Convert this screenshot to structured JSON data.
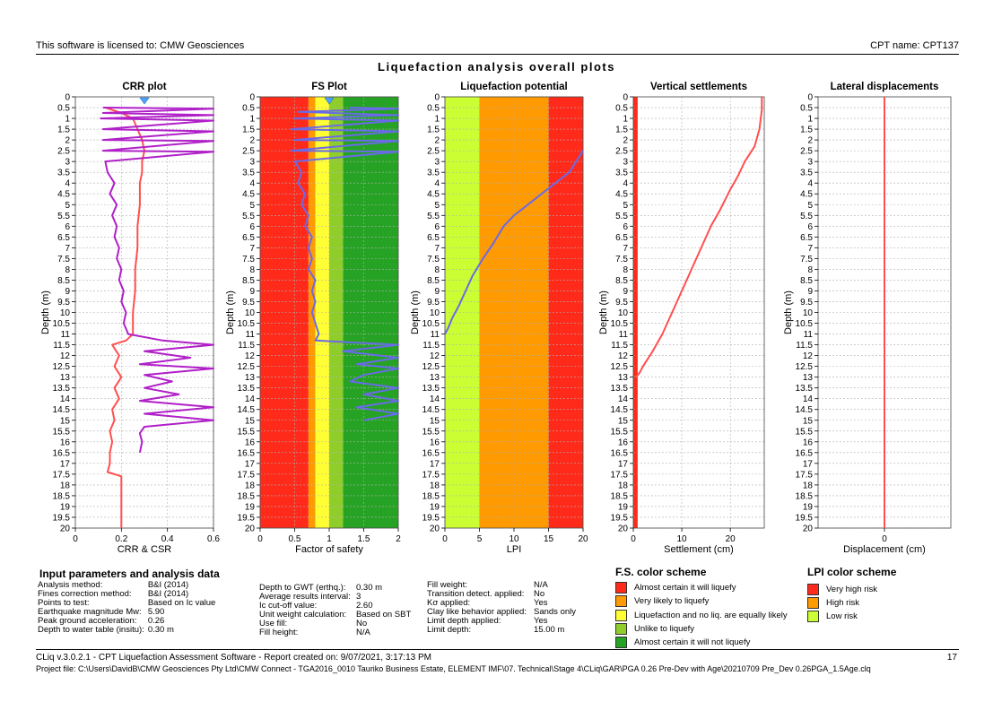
{
  "header": {
    "license": "This software is licensed to: CMW Geosciences",
    "cpt_name": "CPT name: CPT137"
  },
  "page_title": "Liquefaction analysis overall plots",
  "colors": {
    "red": "#ff2a1a",
    "orange": "#ff9a00",
    "yellow": "#ffff33",
    "lightgreen": "#8fce2a",
    "green": "#26a324",
    "lime": "#ccff33",
    "crr": "#ff4f4f",
    "csr": "#b020c8",
    "fs": "#6a6ae8",
    "settle": "#ff4f4f"
  },
  "chart_data": [
    {
      "type": "line",
      "title": "CRR plot",
      "xlabel": "CRR & CSR",
      "ylabel": "Depth (m)",
      "xlim": [
        0,
        0.6
      ],
      "ylim": [
        0,
        20
      ],
      "y_inverted": true,
      "grid": true,
      "x_ticks": [
        "0",
        "0.2",
        "0.4",
        "0.6"
      ],
      "gwt_marker_x": 0.3,
      "series": [
        {
          "name": "CRR",
          "color": "#ff4f4f",
          "points": [
            [
              0.13,
              0.5
            ],
            [
              0.2,
              0.75
            ],
            [
              0.25,
              1
            ],
            [
              0.27,
              1.5
            ],
            [
              0.29,
              2
            ],
            [
              0.3,
              2.5
            ],
            [
              0.29,
              3
            ],
            [
              0.29,
              3.5
            ],
            [
              0.28,
              4
            ],
            [
              0.28,
              5
            ],
            [
              0.27,
              6
            ],
            [
              0.27,
              7
            ],
            [
              0.26,
              8
            ],
            [
              0.26,
              9
            ],
            [
              0.25,
              10
            ],
            [
              0.25,
              11
            ],
            [
              0.22,
              11.3
            ],
            [
              0.16,
              11.5
            ],
            [
              0.19,
              12
            ],
            [
              0.17,
              12.5
            ],
            [
              0.2,
              13
            ],
            [
              0.17,
              13.5
            ],
            [
              0.19,
              14
            ],
            [
              0.16,
              14.5
            ],
            [
              0.17,
              15
            ],
            [
              0.15,
              15.5
            ],
            [
              0.16,
              16
            ],
            [
              0.15,
              16.5
            ],
            [
              0.15,
              17
            ],
            [
              0.14,
              17.4
            ],
            [
              0.2,
              17.6
            ],
            [
              0.2,
              18
            ],
            [
              0.2,
              19
            ],
            [
              0.2,
              20
            ]
          ]
        },
        {
          "name": "CSR",
          "color": "#b020c8",
          "points": [
            [
              0.12,
              0.5
            ],
            [
              0.6,
              0.55
            ],
            [
              0.12,
              0.75
            ],
            [
              0.6,
              0.85
            ],
            [
              0.11,
              1
            ],
            [
              0.6,
              1.1
            ],
            [
              0.12,
              1.5
            ],
            [
              0.6,
              1.6
            ],
            [
              0.12,
              2
            ],
            [
              0.6,
              2.05
            ],
            [
              0.12,
              2.5
            ],
            [
              0.6,
              2.55
            ],
            [
              0.13,
              3
            ],
            [
              0.14,
              3.5
            ],
            [
              0.17,
              4
            ],
            [
              0.15,
              4.5
            ],
            [
              0.18,
              5
            ],
            [
              0.16,
              5.5
            ],
            [
              0.18,
              6
            ],
            [
              0.17,
              6.5
            ],
            [
              0.19,
              7
            ],
            [
              0.18,
              7.5
            ],
            [
              0.2,
              8
            ],
            [
              0.19,
              8.5
            ],
            [
              0.21,
              9
            ],
            [
              0.2,
              9.5
            ],
            [
              0.22,
              10
            ],
            [
              0.21,
              10.5
            ],
            [
              0.23,
              11
            ],
            [
              0.38,
              11.3
            ],
            [
              0.6,
              11.5
            ],
            [
              0.3,
              11.8
            ],
            [
              0.5,
              12.1
            ],
            [
              0.28,
              12.4
            ],
            [
              0.6,
              12.6
            ],
            [
              0.3,
              12.9
            ],
            [
              0.42,
              13.2
            ],
            [
              0.3,
              13.5
            ],
            [
              0.45,
              13.8
            ],
            [
              0.28,
              14.1
            ],
            [
              0.6,
              14.4
            ],
            [
              0.3,
              14.7
            ],
            [
              0.6,
              15
            ],
            [
              0.3,
              15.3
            ],
            [
              0.28,
              15.6
            ],
            [
              0.29,
              16
            ],
            [
              0.28,
              16.5
            ]
          ]
        }
      ]
    },
    {
      "type": "line",
      "title": "FS Plot",
      "xlabel": "Factor of safety",
      "ylabel": "Depth (m)",
      "xlim": [
        0,
        2
      ],
      "ylim": [
        0,
        20
      ],
      "y_inverted": true,
      "grid": true,
      "x_ticks": [
        "0",
        "0.5",
        "1",
        "1.5",
        "2"
      ],
      "gwt_marker_x": 1.0,
      "bands": [
        {
          "from": 0,
          "to": 0.7,
          "color": "#ff2a1a"
        },
        {
          "from": 0.7,
          "to": 0.8,
          "color": "#ff9a00"
        },
        {
          "from": 0.8,
          "to": 1.0,
          "color": "#ffff33"
        },
        {
          "from": 1.0,
          "to": 1.2,
          "color": "#8fce2a"
        },
        {
          "from": 1.2,
          "to": 2.0,
          "color": "#26a324"
        }
      ],
      "series": [
        {
          "name": "FS",
          "color": "#6a6ae8",
          "points": [
            [
              1.3,
              0.5
            ],
            [
              2,
              0.55
            ],
            [
              0.55,
              0.7
            ],
            [
              2,
              0.85
            ],
            [
              0.5,
              1
            ],
            [
              2,
              1.1
            ],
            [
              0.45,
              1.5
            ],
            [
              2,
              1.6
            ],
            [
              0.5,
              2
            ],
            [
              2,
              2.05
            ],
            [
              0.45,
              2.5
            ],
            [
              2,
              2.55
            ],
            [
              0.5,
              3
            ],
            [
              0.6,
              3.5
            ],
            [
              0.55,
              4
            ],
            [
              0.65,
              4.5
            ],
            [
              0.6,
              5
            ],
            [
              0.7,
              5.5
            ],
            [
              0.65,
              6
            ],
            [
              0.75,
              6.5
            ],
            [
              0.7,
              7
            ],
            [
              0.75,
              7.5
            ],
            [
              0.7,
              8
            ],
            [
              0.8,
              8.5
            ],
            [
              0.75,
              9
            ],
            [
              0.8,
              9.5
            ],
            [
              0.75,
              10
            ],
            [
              0.8,
              10.5
            ],
            [
              0.85,
              11
            ],
            [
              0.8,
              11.3
            ],
            [
              2,
              11.5
            ],
            [
              1.2,
              11.8
            ],
            [
              2,
              12.1
            ],
            [
              1.4,
              12.4
            ],
            [
              2,
              12.6
            ],
            [
              1.5,
              12.9
            ],
            [
              1.3,
              13.2
            ],
            [
              2,
              13.5
            ],
            [
              1.5,
              13.8
            ],
            [
              2,
              14.1
            ],
            [
              1.4,
              14.4
            ],
            [
              2,
              14.7
            ],
            [
              1.5,
              15
            ]
          ]
        }
      ]
    },
    {
      "type": "line",
      "title": "Liquefaction potential",
      "xlabel": "LPI",
      "ylabel": "Depth (m)",
      "xlim": [
        0,
        20
      ],
      "ylim": [
        0,
        20
      ],
      "y_inverted": true,
      "grid": true,
      "x_ticks": [
        "0",
        "5",
        "10",
        "15",
        "20"
      ],
      "bands": [
        {
          "from": 0,
          "to": 5,
          "color": "#ccff33"
        },
        {
          "from": 5,
          "to": 15,
          "color": "#ff9a00"
        },
        {
          "from": 15,
          "to": 20,
          "color": "#ff2a1a"
        }
      ],
      "series": [
        {
          "name": "LPI",
          "color": "#6a6ae8",
          "points": [
            [
              20,
              2.5
            ],
            [
              18,
              3.5
            ],
            [
              16,
              4
            ],
            [
              14,
              4.5
            ],
            [
              12,
              5
            ],
            [
              10,
              5.5
            ],
            [
              8.5,
              6
            ],
            [
              7,
              6.8
            ],
            [
              5.5,
              7.5
            ],
            [
              4,
              8.3
            ],
            [
              3,
              9
            ],
            [
              2,
              9.7
            ],
            [
              1,
              10.3
            ],
            [
              0.5,
              10.7
            ],
            [
              0,
              11
            ]
          ]
        }
      ]
    },
    {
      "type": "line",
      "title": "Vertical settlements",
      "xlabel": "Settlement (cm)",
      "ylabel": "Depth (m)",
      "xlim": [
        0,
        27
      ],
      "ylim": [
        0,
        20
      ],
      "y_inverted": true,
      "grid": true,
      "x_ticks": [
        "0",
        "10",
        "20"
      ],
      "tick_values": [
        0,
        10,
        20
      ],
      "left_band": {
        "to": 0.9,
        "color": "#ff2a1a"
      },
      "series": [
        {
          "name": "Settlement",
          "color": "#ff4f4f",
          "points": [
            [
              26.5,
              0
            ],
            [
              26.5,
              0.6
            ],
            [
              26,
              1.5
            ],
            [
              25,
              2.3
            ],
            [
              23,
              3
            ],
            [
              21.5,
              3.7
            ],
            [
              20,
              4.3
            ],
            [
              18,
              5.2
            ],
            [
              16,
              6
            ],
            [
              14,
              7
            ],
            [
              12,
              8
            ],
            [
              10,
              9
            ],
            [
              8,
              10
            ],
            [
              6,
              11
            ],
            [
              4,
              11.8
            ],
            [
              2,
              12.5
            ],
            [
              1.3,
              12.8
            ],
            [
              0.5,
              13
            ]
          ]
        }
      ]
    },
    {
      "type": "line",
      "title": "Lateral displacements",
      "xlabel": "Displacement (cm)",
      "ylabel": "Depth (m)",
      "xlim": [
        -1,
        1
      ],
      "ylim": [
        0,
        20
      ],
      "y_inverted": true,
      "grid": true,
      "x_ticks": [
        "0"
      ],
      "tick_values": [
        0
      ],
      "series": [
        {
          "name": "Displacement",
          "color": "#ff4f4f",
          "points": [
            [
              0,
              0
            ],
            [
              0,
              20
            ]
          ]
        }
      ]
    }
  ],
  "y_tick_labels": [
    "0",
    "0.5",
    "1",
    "1.5",
    "2",
    "2.5",
    "3",
    "3.5",
    "4",
    "4.5",
    "5",
    "5.5",
    "6",
    "6.5",
    "7",
    "7.5",
    "8",
    "8.5",
    "9",
    "9.5",
    "10",
    "10.5",
    "11",
    "11.5",
    "12",
    "12.5",
    "13",
    "13.5",
    "14",
    "14.5",
    "15",
    "15.5",
    "16",
    "16.5",
    "17",
    "17.5",
    "18",
    "18.5",
    "19",
    "19.5",
    "20"
  ],
  "input_params": {
    "title": "Input parameters and analysis data",
    "col1": [
      [
        "Analysis method:",
        "B&I (2014)"
      ],
      [
        "Fines correction method:",
        "B&I (2014)"
      ],
      [
        "Points to test:",
        "Based on Ic value"
      ],
      [
        "Earthquake magnitude Mw:",
        "5.90"
      ],
      [
        "Peak ground acceleration:",
        "0.26"
      ],
      [
        "Depth to water table (insitu):",
        "0.30 m"
      ]
    ],
    "col2": [
      [
        "Depth to GWT (erthq.):",
        "0.30 m"
      ],
      [
        "Average results interval:",
        "3"
      ],
      [
        "Ic cut-off value:",
        "2.60"
      ],
      [
        "Unit weight calculation:",
        "Based on SBT"
      ],
      [
        "Use fill:",
        "No"
      ],
      [
        "Fill height:",
        "N/A"
      ]
    ],
    "col3": [
      [
        "Fill weight:",
        "N/A"
      ],
      [
        "Transition detect. applied:",
        "No"
      ],
      [
        "Kσ applied:",
        "Yes"
      ],
      [
        "Clay like behavior applied:",
        "Sands only"
      ],
      [
        "Limit depth applied:",
        "Yes"
      ],
      [
        "Limit depth:",
        "15.00 m"
      ]
    ]
  },
  "fs_scheme": {
    "title": "F.S. color scheme",
    "items": [
      {
        "label": "Almost certain it will liquefy",
        "color": "#ff2a1a"
      },
      {
        "label": "Very likely to liquefy",
        "color": "#ff9a00"
      },
      {
        "label": "Liquefaction and no liq. are equally likely",
        "color": "#ffff33"
      },
      {
        "label": "Unlike to liquefy",
        "color": "#8fce2a"
      },
      {
        "label": "Almost certain it will not liquefy",
        "color": "#26a324"
      }
    ]
  },
  "lpi_scheme": {
    "title": "LPI color scheme",
    "items": [
      {
        "label": "Very high risk",
        "color": "#ff2a1a"
      },
      {
        "label": "High risk",
        "color": "#ff9a00"
      },
      {
        "label": "Low risk",
        "color": "#ccff33"
      }
    ]
  },
  "footer": {
    "version": "CLiq v.3.0.2.1 - CPT Liquefaction Assessment Software - Report created on: 9/07/2021, 3:17:13 PM",
    "page_number": "17",
    "project_file": "Project file: C:\\Users\\DavidB\\CMW Geosciences Pty Ltd\\CMW Connect - TGA2016_0010 Tauriko Business Estate, ELEMENT IMF\\07. Technical\\Stage 4\\CLiq\\GAR\\PGA 0.26 Pre-Dev with Age\\20210709 Pre_Dev 0.26PGA_1.5Age.clq"
  }
}
